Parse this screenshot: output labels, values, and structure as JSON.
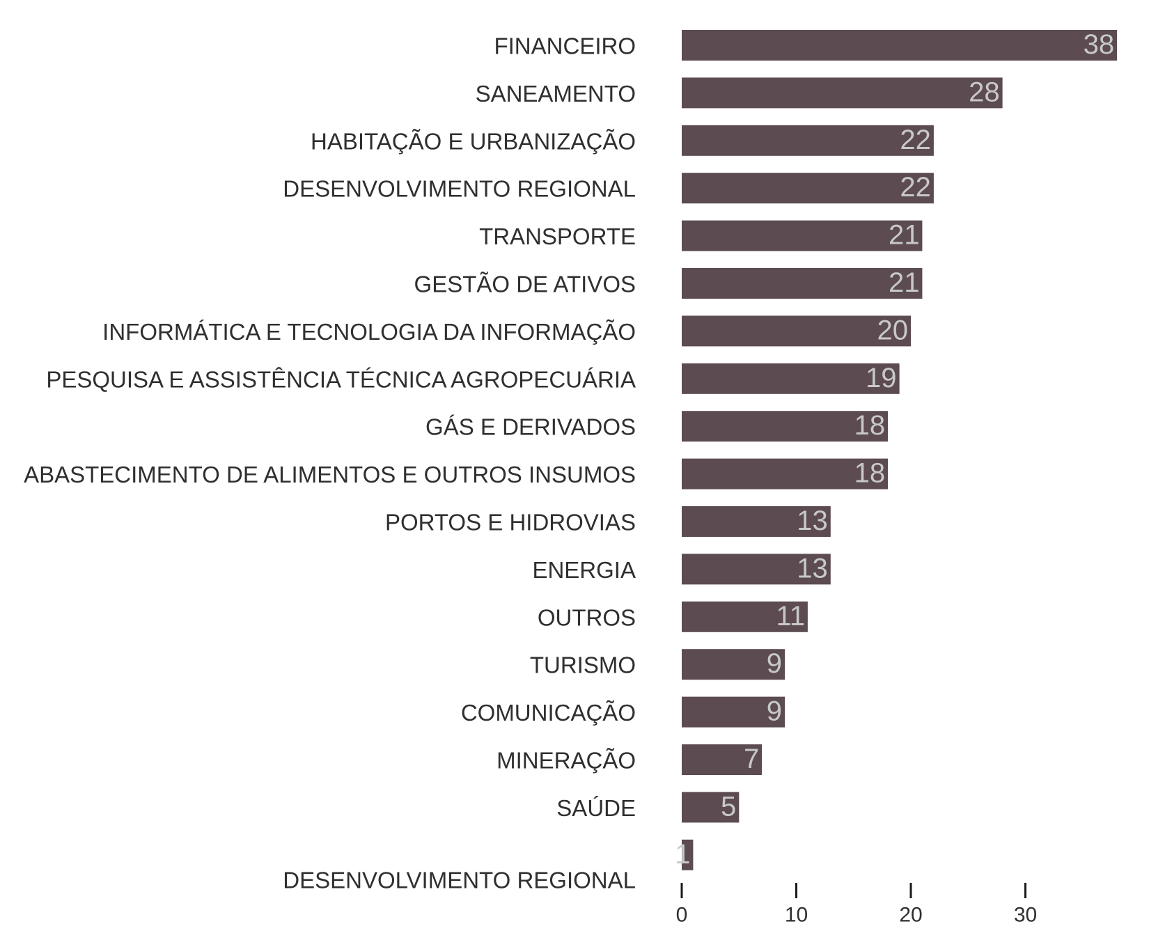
{
  "chart_data": {
    "type": "bar",
    "orientation": "horizontal",
    "title": "",
    "xlabel": "",
    "ylabel": "",
    "categories": [
      "FINANCEIRO",
      "SANEAMENTO",
      "HABITAÇÃO E URBANIZAÇÃO",
      "DESENVOLVIMENTO REGIONAL",
      "TRANSPORTE",
      "GESTÃO DE ATIVOS",
      "INFORMÁTICA E TECNOLOGIA DA INFORMAÇÃO",
      "PESQUISA E ASSISTÊNCIA TÉCNICA AGROPECUÁRIA",
      "GÁS E DERIVADOS",
      "ABASTECIMENTO DE ALIMENTOS E OUTROS INSUMOS",
      "PORTOS E HIDROVIAS",
      "ENERGIA",
      "OUTROS",
      "TURISMO",
      "COMUNICAÇÃO",
      "MINERAÇÃO",
      "SAÚDE",
      "DESENVOLVIMENTO REGIONAL"
    ],
    "values": [
      38,
      28,
      22,
      22,
      21,
      21,
      20,
      19,
      18,
      18,
      13,
      13,
      11,
      9,
      9,
      7,
      5,
      1
    ],
    "value_labels": [
      "38",
      "28",
      "22",
      "22",
      "21",
      "21",
      "20",
      "19",
      "18",
      "18",
      "13",
      "13",
      "11",
      "9",
      "9",
      "7",
      "5",
      "1"
    ],
    "xlim": [
      0,
      38
    ],
    "xticks": [
      0,
      10,
      20,
      30
    ],
    "xtick_labels": [
      "0",
      "10",
      "20",
      "30"
    ],
    "grid": false,
    "legend": "none",
    "bar_color": "#5c4b51",
    "value_label_color": "#c8c8c8",
    "label_color": "#2f2f2f"
  }
}
